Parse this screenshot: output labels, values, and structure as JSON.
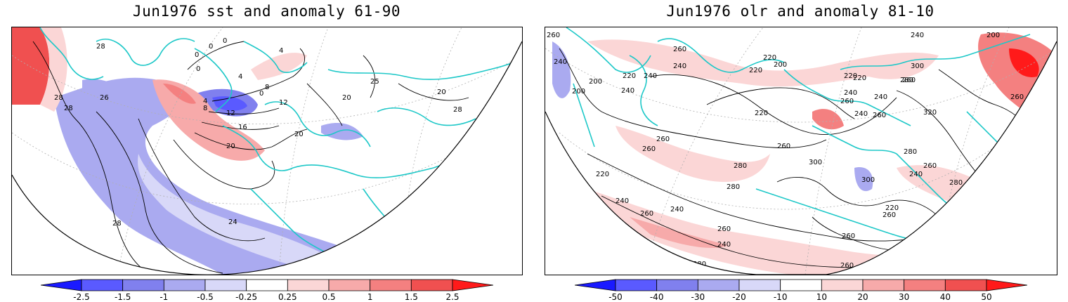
{
  "left_panel": {
    "title": "Jun1976 sst and anomaly 61-90",
    "contour_labels": [
      "28",
      "28",
      "28",
      "28",
      "26",
      "28",
      "28",
      "28",
      "0",
      "0",
      "0",
      "0",
      "0",
      "4",
      "4",
      "8",
      "4",
      "8",
      "12",
      "16",
      "20",
      "20",
      "20",
      "24",
      "12",
      "25",
      "20",
      "28"
    ],
    "colorbar": {
      "labels": [
        "-2.5",
        "-1.5",
        "-1",
        "-0.5",
        "-0.25",
        "0.25",
        "0.5",
        "1",
        "1.5",
        "2.5"
      ],
      "colors": [
        "#1a1aff",
        "#5a5aff",
        "#8080ee",
        "#aaaaf0",
        "#d8d8f8",
        "#ffffff",
        "#fbd6d6",
        "#f7aaaa",
        "#f48080",
        "#f05050",
        "#ff1a1a"
      ]
    }
  },
  "right_panel": {
    "title": "Jun1976 olr and anomaly 81-10",
    "contour_labels": [
      "260",
      "240",
      "200",
      "200",
      "220",
      "240",
      "240",
      "260",
      "240",
      "220",
      "200",
      "220",
      "220",
      "260",
      "220",
      "240",
      "240",
      "260",
      "280",
      "300",
      "240",
      "320",
      "260",
      "240",
      "200",
      "260",
      "260",
      "220",
      "260",
      "260",
      "280",
      "300",
      "300",
      "240",
      "260",
      "280",
      "240",
      "260",
      "220",
      "240",
      "280",
      "220",
      "260",
      "260",
      "260",
      "240",
      "280",
      "260",
      "280"
    ],
    "colorbar": {
      "labels": [
        "-50",
        "-40",
        "-30",
        "-20",
        "-10",
        "10",
        "20",
        "30",
        "40",
        "50"
      ],
      "colors": [
        "#1a1aff",
        "#5a5aff",
        "#8080ee",
        "#aaaaf0",
        "#d8d8f8",
        "#ffffff",
        "#fbd6d6",
        "#f7aaaa",
        "#f48080",
        "#f05050",
        "#ff1a1a"
      ]
    }
  },
  "style": {
    "coast_color": "#1ec8c8",
    "contour_color": "#000000"
  }
}
